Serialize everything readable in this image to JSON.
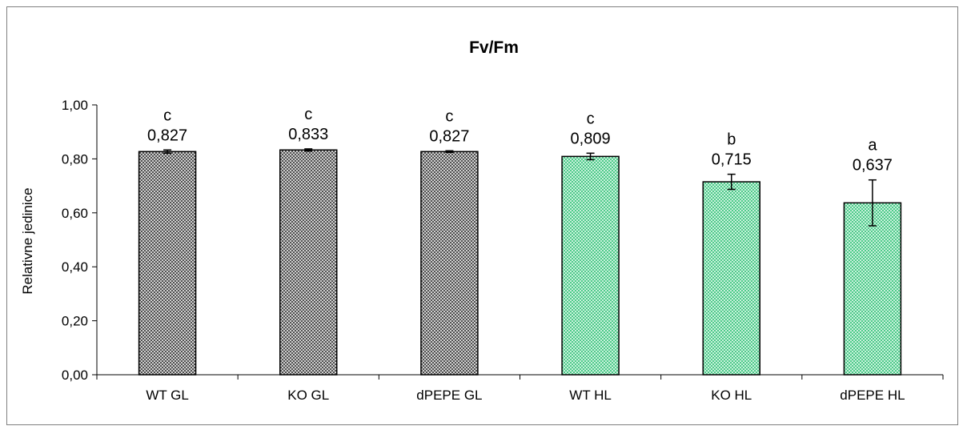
{
  "chart_data": {
    "type": "bar",
    "title": "Fv/Fm",
    "xlabel": "",
    "ylabel": "Relativne jedinice",
    "ylim": [
      0,
      1
    ],
    "yticks": [
      "0,00",
      "0,20",
      "0,40",
      "0,60",
      "0,80",
      "1,00"
    ],
    "yticks_values": [
      0,
      0.2,
      0.4,
      0.6,
      0.8,
      1.0
    ],
    "grid": false,
    "legend": "none",
    "categories": [
      "WT GL",
      "KO GL",
      "dPEPE GL",
      "WT HL",
      "KO HL",
      "dPEPE HL"
    ],
    "values": [
      0.827,
      0.833,
      0.827,
      0.809,
      0.715,
      0.637
    ],
    "value_labels": [
      "0,827",
      "0,833",
      "0,827",
      "0,809",
      "0,715",
      "0,637"
    ],
    "error": [
      0.006,
      0.004,
      0.003,
      0.012,
      0.028,
      0.085
    ],
    "significance_letters": [
      "c",
      "c",
      "c",
      "c",
      "b",
      "a"
    ],
    "bar_styles": [
      "gray-checker",
      "gray-checker",
      "gray-checker",
      "green-checker",
      "green-checker",
      "green-checker"
    ],
    "colors": {
      "gray_dark": "#505050",
      "gray_light": "#d0d0d0",
      "green_dark": "#4ec98a",
      "green_light": "#c9f2dc",
      "axis": "#000000",
      "frame": "#7f7f7f"
    }
  }
}
